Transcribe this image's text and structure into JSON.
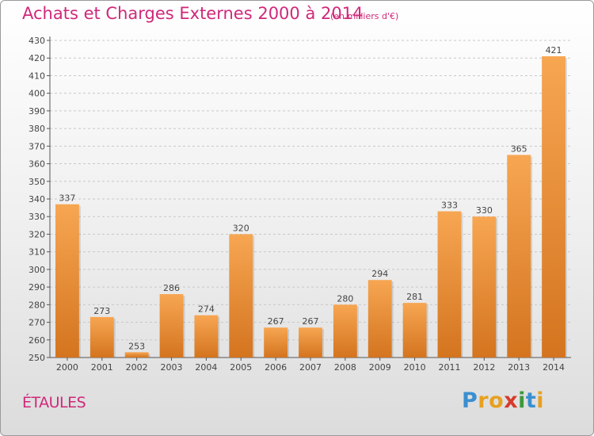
{
  "header": {
    "title": "Achats et Charges Externes 2000 à 2014",
    "unit": "(en milliers d'€)"
  },
  "footer": {
    "place": "ÉTAULES",
    "logo_letters": [
      "P",
      "r",
      "o",
      "x",
      "i",
      "t",
      "i"
    ],
    "logo_colors": [
      "#3b8fd0",
      "#e8a020",
      "#e8a020",
      "#d63a2a",
      "#3a9a3a",
      "#3b8fd0",
      "#e8a020"
    ]
  },
  "chart_data": {
    "type": "bar",
    "categories": [
      "2000",
      "2001",
      "2002",
      "2003",
      "2004",
      "2005",
      "2006",
      "2007",
      "2008",
      "2009",
      "2010",
      "2011",
      "2012",
      "2013",
      "2014"
    ],
    "values": [
      337,
      273,
      253,
      286,
      274,
      320,
      267,
      267,
      280,
      294,
      281,
      333,
      330,
      365,
      421
    ],
    "title": "Achats et Charges Externes 2000 à 2014",
    "xlabel": "",
    "ylabel": "",
    "ylim": [
      250,
      430
    ],
    "yticks": [
      250,
      260,
      270,
      280,
      290,
      300,
      310,
      320,
      330,
      340,
      350,
      360,
      370,
      380,
      390,
      400,
      410,
      420,
      430
    ],
    "grid": true,
    "bar_color_top": "#f7a652",
    "bar_color_bottom": "#d4741f"
  }
}
